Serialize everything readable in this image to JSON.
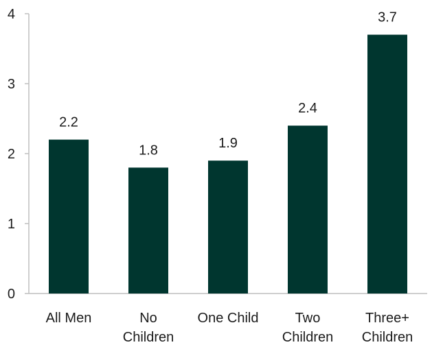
{
  "chart_data": {
    "type": "bar",
    "categories": [
      [
        "All Men"
      ],
      [
        "No",
        "Children"
      ],
      [
        "One Child"
      ],
      [
        "Two",
        "Children"
      ],
      [
        "Three+",
        "Children"
      ]
    ],
    "values": [
      2.2,
      1.8,
      1.9,
      2.4,
      3.7
    ],
    "value_labels": [
      "2.2",
      "1.8",
      "1.9",
      "2.4",
      "3.7"
    ],
    "y_ticks": [
      0,
      1,
      2,
      3,
      4
    ],
    "y_tick_labels": [
      "0",
      "1",
      "2",
      "3",
      "4"
    ],
    "ylim": [
      0,
      4
    ],
    "grid": false,
    "bar_color": "#00362f",
    "axis_color": "#bfbfbf"
  }
}
